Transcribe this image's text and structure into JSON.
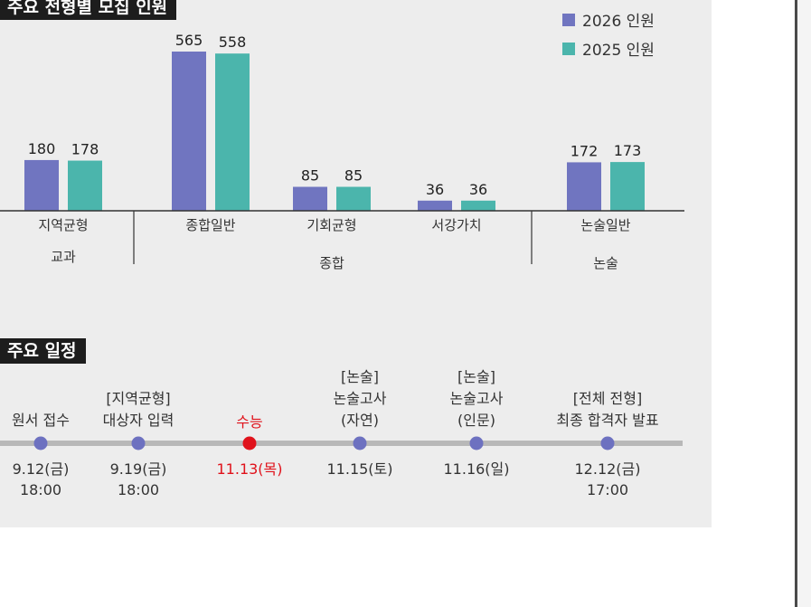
{
  "colors": {
    "series_2026": "#7075c0",
    "series_2025": "#4bb5ac",
    "timeline_dot": "#6d71c0",
    "highlight_red": "#e0121b",
    "panel_bg": "#ededed",
    "title_bg": "#1d1d1d"
  },
  "header": {
    "chart_title": "주요 전형별 모집 인원",
    "schedule_title": "주요 일정"
  },
  "legend": [
    "2026 인원",
    "2025 인원"
  ],
  "chart_data": {
    "type": "bar",
    "title": "주요 전형별 모집 인원",
    "categories": [
      "지역균형",
      "종합일반",
      "기회균형",
      "서강가치",
      "논술일반"
    ],
    "groups": [
      {
        "label": "교과",
        "categories": [
          "지역균형"
        ]
      },
      {
        "label": "종합",
        "categories": [
          "종합일반",
          "기회균형",
          "서강가치"
        ]
      },
      {
        "label": "논술",
        "categories": [
          "논술일반"
        ]
      }
    ],
    "series": [
      {
        "name": "2026 인원",
        "values": [
          180,
          565,
          85,
          36,
          172
        ]
      },
      {
        "name": "2025 인원",
        "values": [
          178,
          558,
          85,
          36,
          173
        ]
      }
    ],
    "ylim": [
      0,
      600
    ],
    "grid": false,
    "legend_position": "top-right"
  },
  "schedule": [
    {
      "label": [
        "원서 접수"
      ],
      "date": [
        "9.12(금)",
        "18:00"
      ],
      "highlight": false
    },
    {
      "label": [
        "[지역균형]",
        "대상자 입력"
      ],
      "date": [
        "9.19(금)",
        "18:00"
      ],
      "highlight": false
    },
    {
      "label": [
        "수능"
      ],
      "date": [
        "11.13(목)"
      ],
      "highlight": true
    },
    {
      "label": [
        "[논술]",
        "논술고사",
        "(자연)"
      ],
      "date": [
        "11.15(토)"
      ],
      "highlight": false
    },
    {
      "label": [
        "[논술]",
        "논술고사",
        "(인문)"
      ],
      "date": [
        "11.16(일)"
      ],
      "highlight": false
    },
    {
      "label": [
        "[전체 전형]",
        "최종 합격자 발표"
      ],
      "date": [
        "12.12(금)",
        "17:00"
      ],
      "highlight": false
    }
  ]
}
